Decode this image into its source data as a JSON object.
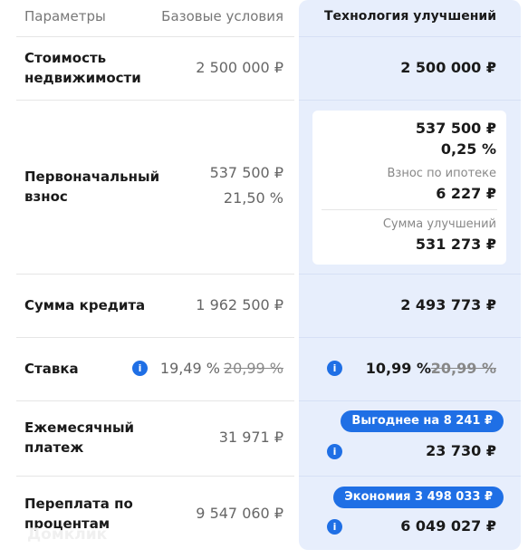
{
  "header": {
    "params": "Параметры",
    "base": "Базовые условия",
    "tech": "Технология улучшений"
  },
  "rows": [
    {
      "label": "Стоимость недвижимости",
      "base": "2 500 000 ₽",
      "tech": "2 500 000 ₽"
    },
    {
      "label": "Первоначальный взнос",
      "base": "537 500 ₽",
      "base_percent": "21,50 %",
      "tech": "537 500 ₽",
      "tech_percent": "0,25 %",
      "mortgage_label": "Взнос по ипотеке",
      "mortgage_value": "6 227 ₽",
      "improvements_label": "Сумма улучшений",
      "improvements_value": "531 273 ₽"
    },
    {
      "label": "Сумма кредита",
      "base": "1 962 500 ₽",
      "tech": "2 493 773 ₽"
    },
    {
      "label": "Ставка",
      "base": "19,49 %",
      "base_old": "20,99 %",
      "tech": "10,99 %",
      "tech_old": "20,99 %"
    },
    {
      "label": "Ежемесячный платеж",
      "base": "31 971 ₽",
      "badge": "Выгоднее на 8 241 ₽",
      "tech": "23 730 ₽"
    },
    {
      "label": "Переплата по процентам",
      "base": "9 547 060 ₽",
      "badge": "Экономия 3 498 033 ₽",
      "tech": "6 049 027 ₽"
    }
  ],
  "watermark": "Домклик"
}
